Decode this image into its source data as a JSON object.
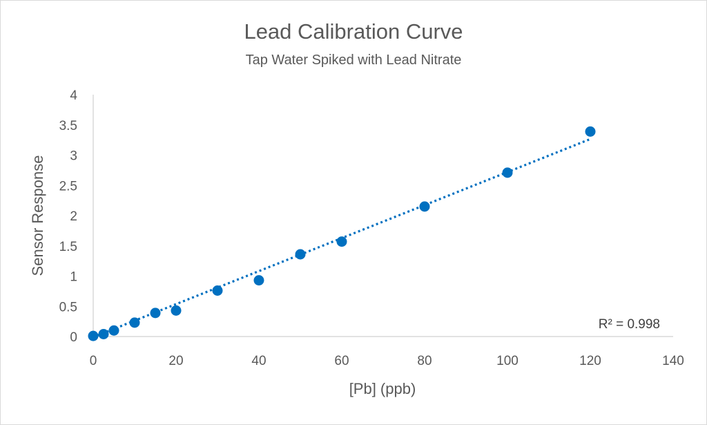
{
  "chart_data": {
    "type": "scatter",
    "title": "Lead Calibration Curve",
    "subtitle": "Tap Water Spiked with Lead Nitrate",
    "xlabel": "[Pb] (ppb)",
    "ylabel": "Sensor Response",
    "xlim": [
      0,
      140
    ],
    "ylim": [
      0,
      4
    ],
    "x_ticks": [
      "0",
      "20",
      "40",
      "60",
      "80",
      "100",
      "120",
      "140"
    ],
    "y_ticks": [
      "0",
      "0.5",
      "1",
      "1.5",
      "2",
      "2.5",
      "3",
      "3.5",
      "4"
    ],
    "grid": false,
    "legend": "none",
    "series": [
      {
        "color": "#0070C0",
        "x": [
          0,
          2.5,
          5,
          10,
          15,
          20,
          30,
          40,
          50,
          60,
          80,
          100,
          120
        ],
        "y": [
          0.01,
          0.04,
          0.1,
          0.23,
          0.39,
          0.43,
          0.76,
          0.93,
          1.36,
          1.57,
          2.15,
          2.71,
          3.39
        ]
      }
    ],
    "trendline": {
      "style": "dotted",
      "color": "#0070C0",
      "x_range": [
        0,
        120
      ],
      "slope": 0.0273,
      "intercept": -0.01,
      "r2_label": "R² = 0.998"
    }
  },
  "colors": {
    "axis": "#d9d9d9",
    "text": "#595959",
    "marker": "#0070C0"
  }
}
